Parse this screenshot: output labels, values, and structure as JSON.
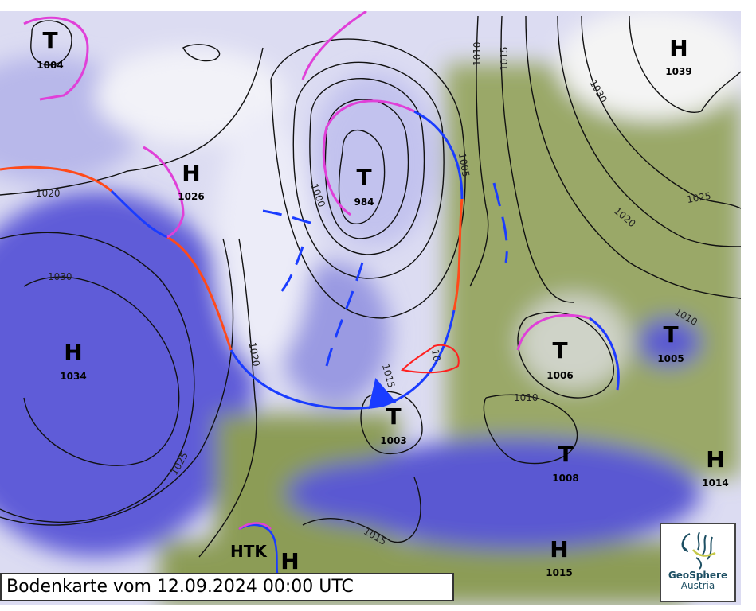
{
  "caption": "Bodenkarte vom 12.09.2024 00:00 UTC",
  "logo": {
    "line1": "GeoSphere",
    "line2": "Austria"
  },
  "colors": {
    "land": "#8c9c56",
    "sea": "#5a58d2",
    "cloud": "#e8e8f6",
    "cold_front": "#1a3cff",
    "warm_front": "#ff4a1a",
    "occlusion": "#e040d8",
    "isobar": "#111111",
    "coast": "#40e0f0"
  },
  "pressure_centers": [
    {
      "type": "T",
      "value": "1004"
    },
    {
      "type": "H",
      "value": "1039"
    },
    {
      "type": "H",
      "value": "1026"
    },
    {
      "type": "T",
      "value": "984"
    },
    {
      "type": "H",
      "value": "1034"
    },
    {
      "type": "T",
      "value": "1006"
    },
    {
      "type": "T",
      "value": "1005"
    },
    {
      "type": "T",
      "value": "1003"
    },
    {
      "type": "T",
      "value": "1008"
    },
    {
      "type": "H",
      "value": "1014"
    },
    {
      "type": "H",
      "value": "1015"
    },
    {
      "type": "H",
      "value": ""
    }
  ],
  "htk_label": "HTK",
  "isobar_labels": [
    "1020",
    "1030",
    "1025",
    "1020",
    "1015",
    "1010",
    "1015",
    "1030",
    "1025",
    "1020",
    "1010",
    "1010",
    "1005",
    "1000",
    "1015",
    "10"
  ]
}
